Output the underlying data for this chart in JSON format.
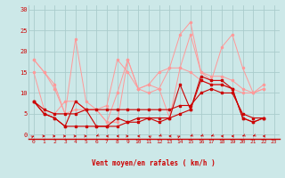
{
  "bg_color": "#cce8e8",
  "grid_color": "#aacccc",
  "line_color_light": "#ff9999",
  "line_color_dark": "#cc0000",
  "xlabel": "Vent moyen/en rafales ( km/h )",
  "xlabel_color": "#cc0000",
  "yticks": [
    0,
    5,
    10,
    15,
    20,
    25,
    30
  ],
  "xlim": [
    -0.5,
    23.5
  ],
  "ylim": [
    -1,
    31
  ],
  "series_light": [
    [
      18,
      15,
      11,
      5,
      23,
      8,
      6,
      3,
      10,
      18,
      11,
      12,
      15,
      16,
      24,
      27,
      15,
      13,
      21,
      24,
      16,
      10,
      12
    ],
    [
      15,
      6,
      5,
      8,
      8,
      6,
      6,
      7,
      18,
      15,
      11,
      10,
      11,
      16,
      16,
      15,
      13,
      12,
      12,
      11,
      10,
      10,
      11
    ],
    [
      18,
      15,
      12,
      5,
      6,
      6,
      6,
      3,
      3,
      18,
      11,
      12,
      11,
      4,
      16,
      24,
      15,
      14,
      14,
      13,
      11,
      10,
      11
    ]
  ],
  "series_dark": [
    [
      8,
      5,
      4,
      2,
      8,
      6,
      2,
      2,
      4,
      3,
      4,
      4,
      3,
      4,
      12,
      6,
      14,
      13,
      13,
      11,
      4,
      3,
      4
    ],
    [
      8,
      6,
      5,
      5,
      5,
      6,
      6,
      6,
      6,
      6,
      6,
      6,
      6,
      6,
      7,
      7,
      10,
      11,
      10,
      10,
      5,
      4,
      4
    ],
    [
      8,
      5,
      4,
      2,
      2,
      2,
      2,
      2,
      2,
      3,
      3,
      4,
      4,
      4,
      5,
      6,
      13,
      12,
      12,
      11,
      4,
      3,
      4
    ]
  ],
  "wind_angles": [
    45,
    90,
    90,
    90,
    90,
    90,
    225,
    270,
    270,
    90,
    270,
    315,
    225,
    270,
    45,
    225,
    225,
    225,
    270,
    270,
    225,
    225,
    270
  ]
}
